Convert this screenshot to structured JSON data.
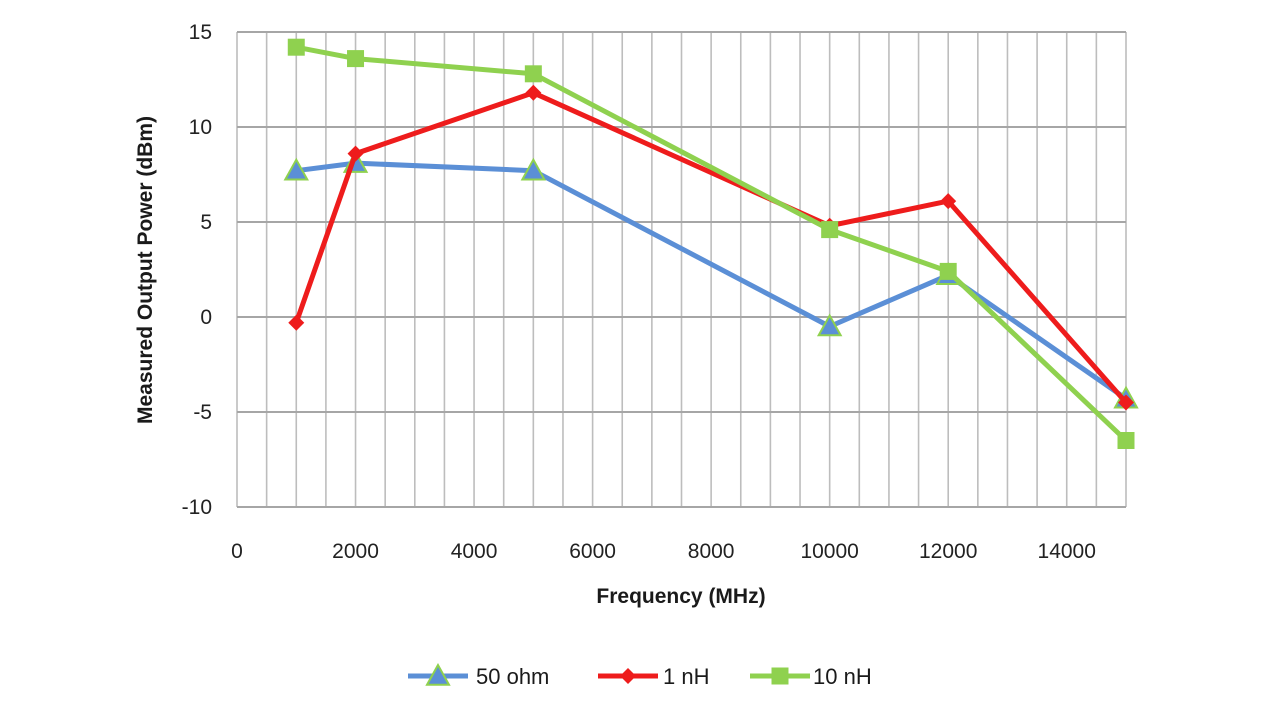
{
  "chart_data": {
    "type": "line",
    "title": "",
    "xlabel": "Frequency (MHz)",
    "ylabel": "Measured Output Power (dBm)",
    "xlim": [
      0,
      15000
    ],
    "ylim": [
      -10,
      15
    ],
    "x_ticks": [
      0,
      2000,
      4000,
      6000,
      8000,
      10000,
      12000,
      14000
    ],
    "x_minor_step": 500,
    "y_ticks": [
      -10,
      -5,
      0,
      5,
      10,
      15
    ],
    "grid": true,
    "legend_position": "bottom",
    "x": [
      1000,
      2000,
      5000,
      10000,
      12000,
      15000
    ],
    "series": [
      {
        "name": "50 ohm",
        "color": "#5b8fd6",
        "marker": "triangle",
        "values": [
          7.7,
          8.1,
          7.7,
          -0.5,
          2.2,
          -4.3
        ]
      },
      {
        "name": "1 nH",
        "color": "#ee1c1c",
        "marker": "diamond",
        "values": [
          -0.3,
          8.6,
          11.8,
          4.8,
          6.1,
          -4.5
        ]
      },
      {
        "name": "10 nH",
        "color": "#8fd14f",
        "marker": "square",
        "values": [
          14.2,
          13.6,
          12.8,
          4.6,
          2.4,
          -6.5
        ]
      }
    ]
  }
}
